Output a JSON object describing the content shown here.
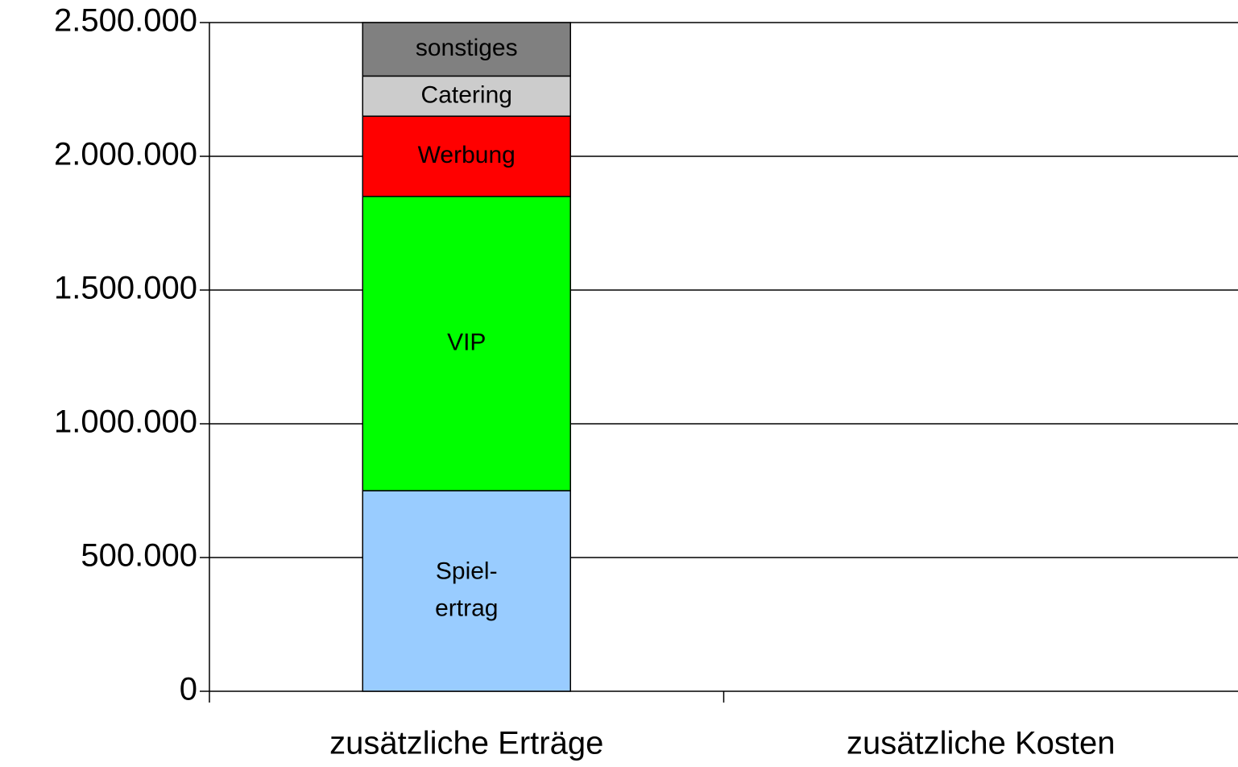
{
  "chart_data": {
    "type": "stacked_bar",
    "categories": [
      "zusätzliche Erträge",
      "zusätzliche Kosten"
    ],
    "series": [
      {
        "name": "Spiel-\nertrag",
        "color": "#99ccff",
        "values": [
          750000,
          null
        ]
      },
      {
        "name": "VIP",
        "color": "#00ff00",
        "values": [
          1100000,
          null
        ]
      },
      {
        "name": "Werbung",
        "color": "#ff0000",
        "values": [
          300000,
          null
        ]
      },
      {
        "name": "Catering",
        "color": "#cccccc",
        "values": [
          150000,
          null
        ]
      },
      {
        "name": "sonstiges",
        "color": "#808080",
        "values": [
          200000,
          null
        ]
      }
    ],
    "ylim": [
      0,
      2500000
    ],
    "yticks": [
      0,
      {
        "value": 500000,
        "label": "500.000"
      },
      {
        "value": 1000000,
        "label": "1.000.000"
      },
      {
        "value": 1500000,
        "label": "1.500.000"
      },
      {
        "value": 2000000,
        "label": "2.000.000"
      },
      {
        "value": 2500000,
        "label": "2.500.000"
      }
    ],
    "grid": true
  }
}
